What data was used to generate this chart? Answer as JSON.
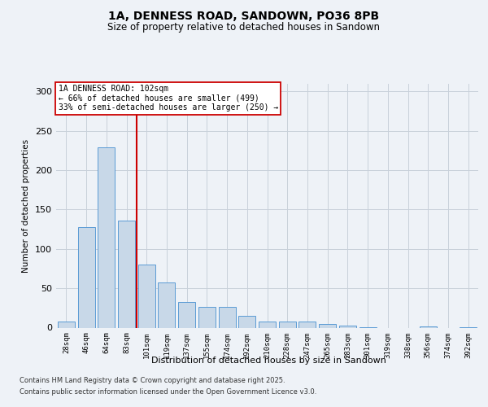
{
  "title_line1": "1A, DENNESS ROAD, SANDOWN, PO36 8PB",
  "title_line2": "Size of property relative to detached houses in Sandown",
  "xlabel": "Distribution of detached houses by size in Sandown",
  "ylabel": "Number of detached properties",
  "categories": [
    "28sqm",
    "46sqm",
    "64sqm",
    "83sqm",
    "101sqm",
    "119sqm",
    "137sqm",
    "155sqm",
    "174sqm",
    "192sqm",
    "210sqm",
    "228sqm",
    "247sqm",
    "265sqm",
    "283sqm",
    "301sqm",
    "319sqm",
    "338sqm",
    "356sqm",
    "374sqm",
    "392sqm"
  ],
  "values": [
    8,
    128,
    229,
    136,
    80,
    57,
    33,
    26,
    26,
    15,
    8,
    8,
    8,
    5,
    3,
    1,
    0,
    0,
    2,
    0,
    1
  ],
  "bar_color": "#c8d8e8",
  "bar_edge_color": "#5b9bd5",
  "property_label": "1A DENNESS ROAD: 102sqm",
  "annotation_line2": "← 66% of detached houses are smaller (499)",
  "annotation_line3": "33% of semi-detached houses are larger (250) →",
  "red_line_x": 3.5,
  "ylim": [
    0,
    310
  ],
  "yticks": [
    0,
    50,
    100,
    150,
    200,
    250,
    300
  ],
  "background_color": "#eef2f7",
  "plot_bg_color": "#eef2f7",
  "footer_line1": "Contains HM Land Registry data © Crown copyright and database right 2025.",
  "footer_line2": "Contains public sector information licensed under the Open Government Licence v3.0.",
  "red_line_color": "#cc0000",
  "grid_color": "#c8d0da"
}
